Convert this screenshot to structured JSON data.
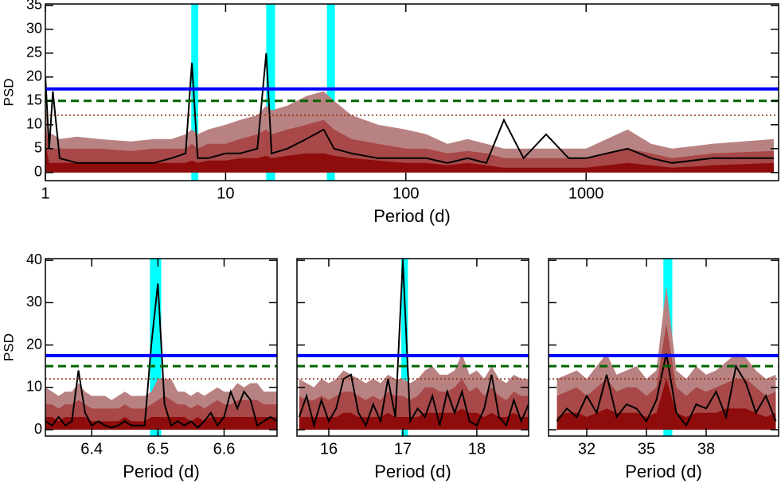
{
  "chart_data": [
    {
      "type": "line",
      "xscale": "log",
      "xlabel": "Period (d)",
      "ylabel": "PSD",
      "show_ytick_labels": true,
      "xlim": [
        1,
        11700
      ],
      "ylim": [
        -1.7,
        35.3
      ],
      "xticks": [
        1,
        10,
        100,
        1000
      ],
      "yticks": [
        0,
        5,
        10,
        15,
        20,
        25,
        30,
        35
      ],
      "bands": [
        [
          6.45,
          7.05
        ],
        [
          16.8,
          18.8
        ],
        [
          36.5,
          40.4
        ]
      ],
      "band_color": "#00ffff",
      "hlines": [
        {
          "value": 17.5,
          "color": "#0000ff",
          "dash": "solid"
        },
        {
          "value": 15,
          "color": "#006400",
          "dash": "dashed"
        },
        {
          "value": 12,
          "color": "#8b2500",
          "dash": "dotted"
        }
      ],
      "x": [
        1,
        1.05,
        1.1,
        1.2,
        1.5,
        2,
        3,
        4,
        5,
        6,
        6.5,
        7,
        8,
        10,
        12,
        15,
        16.8,
        18,
        22,
        28,
        35,
        40,
        50,
        70,
        100,
        130,
        170,
        220,
        280,
        350,
        450,
        600,
        800,
        1000,
        1300,
        1700,
        2300,
        3000,
        5000,
        11000
      ],
      "series": [
        {
          "kind": "area",
          "color": "#b98282",
          "values": [
            14,
            8,
            8,
            7,
            7.5,
            7,
            6.5,
            7,
            7,
            8,
            9,
            8,
            9,
            10,
            11,
            12,
            14,
            13,
            14,
            16,
            17,
            15,
            12,
            10,
            9,
            8,
            6,
            7,
            6,
            5,
            5,
            5,
            5,
            5,
            7,
            9,
            6,
            5,
            6,
            7
          ]
        },
        {
          "kind": "area",
          "color": "#a84848",
          "values": [
            10,
            5,
            5,
            5,
            5,
            5,
            4.5,
            5,
            5,
            5,
            6,
            5,
            6,
            6,
            7,
            8,
            9,
            8,
            9,
            10,
            11,
            9,
            7,
            6,
            5,
            5,
            4,
            4.5,
            4,
            3,
            3,
            3,
            3,
            3,
            4,
            5,
            4,
            3,
            4,
            4.5
          ]
        },
        {
          "kind": "area",
          "color": "#8f0c0c",
          "values": [
            6,
            2,
            2,
            2,
            2,
            2,
            2,
            2,
            2,
            2,
            2.5,
            2,
            2.5,
            2.5,
            3,
            3,
            3.5,
            3,
            3.5,
            4,
            4,
            3.5,
            3,
            2.5,
            2,
            2,
            1.5,
            2,
            1.5,
            1,
            1,
            1,
            1,
            1,
            1.5,
            2,
            1.5,
            1,
            1.5,
            2
          ]
        },
        {
          "kind": "line",
          "color": "#000000",
          "values": [
            20,
            5,
            17,
            3,
            2,
            2,
            2,
            2,
            3,
            4,
            23,
            3,
            3,
            4,
            4,
            5,
            25,
            4,
            5,
            7,
            9,
            5,
            4,
            3,
            3,
            3,
            2,
            3,
            2,
            11,
            3,
            8,
            3,
            3,
            4,
            5,
            3,
            2,
            3,
            3
          ]
        }
      ]
    },
    {
      "type": "line",
      "xscale": "linear",
      "xlabel": "Period (d)",
      "ylabel": "PSD",
      "show_ytick_labels": true,
      "xlim": [
        6.33,
        6.68
      ],
      "ylim": [
        -1.5,
        40.4
      ],
      "xticks": [
        6.4,
        6.5,
        6.6
      ],
      "yticks": [
        0,
        10,
        20,
        30,
        40
      ],
      "bands": [
        [
          6.488,
          6.505
        ]
      ],
      "band_color": "#00ffff",
      "hlines": [
        {
          "value": 17.5,
          "color": "#0000ff",
          "dash": "solid"
        },
        {
          "value": 15,
          "color": "#006400",
          "dash": "dashed"
        },
        {
          "value": 12,
          "color": "#8b2500",
          "dash": "dotted"
        }
      ],
      "x": [
        6.33,
        6.34,
        6.35,
        6.36,
        6.37,
        6.38,
        6.39,
        6.4,
        6.41,
        6.42,
        6.43,
        6.44,
        6.45,
        6.46,
        6.47,
        6.48,
        6.49,
        6.5,
        6.51,
        6.52,
        6.53,
        6.54,
        6.55,
        6.56,
        6.57,
        6.58,
        6.59,
        6.6,
        6.61,
        6.62,
        6.63,
        6.64,
        6.65,
        6.66,
        6.67,
        6.68
      ],
      "series": [
        {
          "kind": "area",
          "color": "#b98282",
          "values": [
            10,
            9,
            8,
            9,
            9,
            11,
            9,
            8,
            8,
            8,
            7,
            8,
            9,
            8,
            8,
            8,
            9,
            12,
            12,
            12,
            9,
            9,
            8,
            9,
            8,
            9,
            10,
            9,
            9,
            11,
            10,
            11,
            11,
            9,
            9,
            9
          ]
        },
        {
          "kind": "area",
          "color": "#a84848",
          "values": [
            6,
            6,
            5,
            6,
            6,
            7,
            6,
            5,
            5,
            5,
            5,
            5,
            6,
            5,
            5,
            5,
            6,
            7,
            8,
            7,
            6,
            6,
            5,
            6,
            5,
            6,
            7,
            6,
            6,
            7,
            7,
            7,
            7,
            6,
            6,
            6
          ]
        },
        {
          "kind": "area",
          "color": "#8f0c0c",
          "values": [
            3,
            3,
            2,
            3,
            3,
            3,
            3,
            2,
            2,
            2,
            2,
            2,
            3,
            2,
            2,
            2,
            3,
            3,
            3,
            3,
            3,
            3,
            2,
            3,
            2,
            3,
            3,
            3,
            3,
            3,
            3,
            3,
            3,
            3,
            3,
            3
          ]
        },
        {
          "kind": "line",
          "color": "#000000",
          "values": [
            2,
            1,
            3,
            1,
            2,
            14,
            4,
            1,
            2,
            1,
            0.5,
            1,
            2,
            1,
            1,
            1,
            20,
            34.5,
            6,
            1,
            2,
            1,
            2,
            0.5,
            2,
            4,
            1,
            3,
            9,
            5,
            9,
            7,
            1,
            2,
            3,
            2
          ]
        }
      ]
    },
    {
      "type": "line",
      "xscale": "linear",
      "xlabel": "Period (d)",
      "show_ytick_labels": false,
      "xlim": [
        15.57,
        18.7
      ],
      "ylim": [
        -1.5,
        40.4
      ],
      "xticks": [
        16,
        17,
        18
      ],
      "yticks": [
        0,
        10,
        20,
        30,
        40
      ],
      "bands": [
        [
          16.98,
          17.07
        ]
      ],
      "band_color": "#00ffff",
      "hlines": [
        {
          "value": 17.5,
          "color": "#0000ff",
          "dash": "solid"
        },
        {
          "value": 15,
          "color": "#006400",
          "dash": "dashed"
        },
        {
          "value": 12,
          "color": "#8b2500",
          "dash": "dotted"
        }
      ],
      "x": [
        15.6,
        15.7,
        15.8,
        15.9,
        16,
        16.1,
        16.2,
        16.3,
        16.4,
        16.5,
        16.6,
        16.7,
        16.8,
        16.9,
        17,
        17.1,
        17.2,
        17.3,
        17.4,
        17.5,
        17.6,
        17.7,
        17.8,
        17.9,
        18,
        18.1,
        18.2,
        18.3,
        18.4,
        18.5,
        18.6,
        18.7
      ],
      "series": [
        {
          "kind": "area",
          "color": "#b98282",
          "values": [
            12,
            11,
            10,
            12,
            11,
            12,
            14,
            13,
            12,
            11,
            12,
            11,
            13,
            12,
            12,
            11,
            12,
            14,
            15,
            13,
            13,
            14,
            18,
            13,
            14,
            12,
            15,
            12,
            11,
            13,
            12,
            12
          ]
        },
        {
          "kind": "area",
          "color": "#a84848",
          "values": [
            8,
            7,
            7,
            8,
            7,
            8,
            9,
            9,
            8,
            7,
            8,
            7,
            9,
            8,
            8,
            7,
            8,
            10,
            10,
            9,
            9,
            10,
            12,
            9,
            10,
            8,
            10,
            8,
            7,
            9,
            8,
            8
          ]
        },
        {
          "kind": "area",
          "color": "#8f0c0c",
          "values": [
            3,
            3,
            3,
            3,
            3,
            3,
            4,
            4,
            3,
            3,
            3,
            3,
            4,
            3,
            3,
            3,
            3,
            4,
            4,
            4,
            4,
            4,
            5,
            4,
            4,
            3,
            4,
            3,
            3,
            4,
            3,
            3
          ]
        },
        {
          "kind": "line",
          "color": "#000000",
          "values": [
            3,
            8,
            1,
            7,
            2,
            5,
            12,
            13,
            4,
            1,
            6,
            2,
            12,
            3,
            40,
            2,
            5,
            3,
            8,
            1,
            9,
            4,
            9,
            2,
            1,
            5,
            13,
            3,
            1,
            7,
            2,
            6
          ]
        }
      ]
    },
    {
      "type": "line",
      "xscale": "linear",
      "xlabel": "Period (d)",
      "show_ytick_labels": false,
      "xlim": [
        30.08,
        41.64
      ],
      "ylim": [
        -1.5,
        40.4
      ],
      "xticks": [
        32,
        35,
        38
      ],
      "yticks": [
        0,
        10,
        20,
        30,
        40
      ],
      "bands": [
        [
          35.85,
          36.3
        ]
      ],
      "band_color": "#00ffff",
      "hlines": [
        {
          "value": 17.5,
          "color": "#0000ff",
          "dash": "solid"
        },
        {
          "value": 15,
          "color": "#006400",
          "dash": "dashed"
        },
        {
          "value": 12,
          "color": "#8b2500",
          "dash": "dotted"
        }
      ],
      "x": [
        30.5,
        31,
        31.5,
        32,
        32.5,
        33,
        33.5,
        34,
        34.5,
        35,
        35.5,
        36,
        36.5,
        37,
        37.5,
        38,
        38.5,
        39,
        39.5,
        40,
        40.5,
        41,
        41.5
      ],
      "series": [
        {
          "kind": "area",
          "color": "#b98282",
          "values": [
            12,
            13,
            14,
            12,
            15,
            18,
            13,
            14,
            15,
            12,
            14,
            34,
            14,
            12,
            15,
            13,
            14,
            16,
            18,
            17,
            14,
            12,
            13
          ]
        },
        {
          "kind": "area",
          "color": "#a84848",
          "values": [
            8,
            9,
            10,
            8,
            10,
            12,
            9,
            10,
            10,
            8,
            10,
            25,
            10,
            8,
            10,
            9,
            10,
            11,
            12,
            12,
            10,
            8,
            9
          ]
        },
        {
          "kind": "area",
          "color": "#8f0c0c",
          "values": [
            3,
            4,
            4,
            3,
            4,
            5,
            4,
            4,
            4,
            3,
            4,
            12,
            4,
            3,
            4,
            4,
            4,
            5,
            5,
            5,
            4,
            3,
            4
          ]
        },
        {
          "kind": "line",
          "color": "#000000",
          "values": [
            2,
            5,
            3,
            8,
            4,
            13,
            3,
            6,
            5,
            2,
            7,
            18,
            4,
            1,
            6,
            5,
            9,
            3,
            15,
            11,
            4,
            8,
            2
          ]
        }
      ]
    }
  ]
}
